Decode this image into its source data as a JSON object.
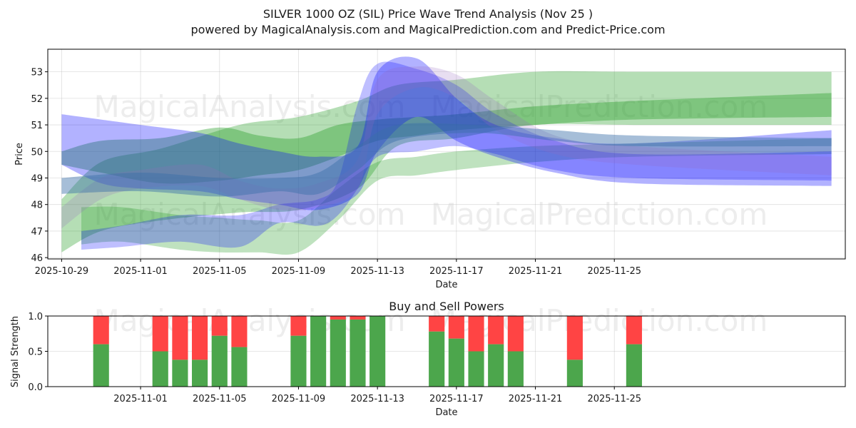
{
  "chart_data": [
    {
      "type": "area",
      "title": "SILVER 1000 OZ (SIL) Price Wave Trend Analysis (Nov 25 )",
      "subtitle": "powered by MagicalAnalysis.com and MagicalPrediction.com and Predict-Price.com",
      "xlabel": "Date",
      "ylabel": "Price",
      "xlim_days": [
        -0.7,
        39.7
      ],
      "ylim": [
        45.95,
        53.85
      ],
      "x_ticks": [
        {
          "day": 0,
          "label": "2025-10-29"
        },
        {
          "day": 4,
          "label": "2025-11-01"
        },
        {
          "day": 8,
          "label": "2025-11-05"
        },
        {
          "day": 12,
          "label": "2025-11-09"
        },
        {
          "day": 16,
          "label": "2025-11-13"
        },
        {
          "day": 20,
          "label": "2025-11-17"
        },
        {
          "day": 24,
          "label": "2025-11-21"
        },
        {
          "day": 28,
          "label": "2025-11-25"
        }
      ],
      "y_ticks": [
        46,
        47,
        48,
        49,
        50,
        51,
        52,
        53
      ],
      "grid": true,
      "watermarks": [
        "MagicalAnalysis.com",
        "MagicalPrediction.com",
        "MagicalAnalysis.com",
        "MagicalPrediction.com"
      ],
      "bands": [
        {
          "name": "green-wide-band",
          "color": "#2ca02c",
          "opacity": 0.35,
          "x": [
            0,
            2,
            5,
            9,
            12,
            15,
            17,
            20,
            24,
            29,
            39
          ],
          "lower": [
            46.2,
            47.0,
            47.4,
            47.7,
            47.8,
            48.6,
            50.2,
            50.5,
            51.0,
            51.0,
            51.0
          ],
          "upper": [
            48.2,
            49.6,
            50.1,
            51.0,
            51.3,
            51.9,
            52.5,
            52.7,
            53.0,
            53.0,
            53.0
          ]
        },
        {
          "name": "green-mid-band",
          "color": "#2ca02c",
          "opacity": 0.4,
          "x": [
            0,
            2,
            5,
            8,
            10,
            12,
            14,
            16,
            18,
            20,
            24,
            29,
            39
          ],
          "lower": [
            49.5,
            49.2,
            48.8,
            48.9,
            49.1,
            49.3,
            49.8,
            50.4,
            50.6,
            50.8,
            51.0,
            51.2,
            51.3
          ],
          "upper": [
            50.0,
            50.4,
            50.5,
            50.9,
            50.6,
            50.5,
            51.0,
            51.2,
            51.3,
            51.4,
            51.7,
            51.9,
            52.2
          ]
        },
        {
          "name": "green-low-band",
          "color": "#2ca02c",
          "opacity": 0.3,
          "x": [
            1,
            3,
            6,
            8,
            10,
            12,
            14,
            16,
            18,
            20,
            24,
            29,
            39
          ],
          "lower": [
            46.5,
            46.6,
            46.3,
            46.2,
            46.2,
            46.2,
            47.4,
            48.9,
            49.1,
            49.3,
            49.6,
            49.8,
            49.9
          ],
          "upper": [
            47.9,
            47.9,
            47.6,
            47.5,
            47.4,
            47.4,
            48.6,
            49.6,
            49.8,
            50.0,
            50.2,
            50.3,
            50.5
          ]
        },
        {
          "name": "blue-wide-band",
          "color": "#0000ff",
          "opacity": 0.3,
          "x": [
            0,
            2,
            4,
            7,
            9,
            11,
            13,
            15,
            16,
            18,
            20,
            22,
            25,
            29,
            39
          ],
          "lower": [
            49.5,
            48.8,
            48.6,
            48.5,
            48.2,
            48.0,
            47.8,
            48.4,
            50.0,
            51.3,
            50.4,
            49.8,
            49.2,
            48.8,
            48.7
          ],
          "upper": [
            51.4,
            51.2,
            51.0,
            50.7,
            50.3,
            50.0,
            49.8,
            50.2,
            53.0,
            53.5,
            52.0,
            51.0,
            50.5,
            50.3,
            50.8
          ]
        },
        {
          "name": "blue-mid-band",
          "color": "#0000ff",
          "opacity": 0.25,
          "x": [
            1,
            3,
            6,
            9,
            11,
            13,
            14,
            15,
            16,
            18,
            20,
            22,
            25,
            29,
            39
          ],
          "lower": [
            46.3,
            46.4,
            46.6,
            46.4,
            47.3,
            47.2,
            47.6,
            48.6,
            49.8,
            50.0,
            50.2,
            49.9,
            49.3,
            49.0,
            48.9
          ],
          "upper": [
            47.0,
            47.2,
            47.6,
            47.6,
            48.0,
            48.2,
            48.9,
            51.8,
            53.3,
            53.1,
            52.5,
            51.4,
            50.4,
            49.9,
            50.0
          ]
        },
        {
          "name": "violet-band",
          "color": "#9467bd",
          "opacity": 0.22,
          "x": [
            0,
            2,
            4,
            7,
            9,
            11,
            13,
            15,
            16,
            18,
            20,
            22,
            25,
            29,
            39
          ],
          "lower": [
            47.1,
            48.2,
            48.6,
            48.7,
            48.2,
            47.8,
            47.9,
            48.6,
            51.4,
            52.4,
            52.0,
            50.8,
            49.9,
            49.5,
            49.1
          ],
          "upper": [
            47.9,
            49.0,
            49.3,
            49.5,
            48.9,
            48.6,
            48.8,
            49.7,
            52.7,
            53.2,
            52.9,
            51.9,
            50.6,
            50.2,
            49.8
          ]
        },
        {
          "name": "teal-band",
          "color": "#3a6fa8",
          "opacity": 0.45,
          "x": [
            0,
            4,
            8,
            11,
            13,
            15,
            17,
            21,
            25,
            29,
            39
          ],
          "lower": [
            48.4,
            48.5,
            48.3,
            48.5,
            48.4,
            49.3,
            50.4,
            50.7,
            50.4,
            50.2,
            50.2
          ],
          "upper": [
            49.0,
            49.2,
            49.0,
            49.0,
            49.2,
            50.2,
            51.0,
            51.0,
            50.8,
            50.6,
            50.5
          ]
        }
      ]
    },
    {
      "type": "bar",
      "title": "Buy and Sell Powers",
      "xlabel": "",
      "ylabel": "Signal Strength",
      "xlabel_bottom": "Date",
      "ylim": [
        0,
        1.0
      ],
      "y_ticks": [
        0.0,
        0.5,
        1.0
      ],
      "xlim_days": [
        -0.7,
        39.7
      ],
      "x_ticks": [
        {
          "day": 4,
          "label": "2025-11-01"
        },
        {
          "day": 8,
          "label": "2025-11-05"
        },
        {
          "day": 12,
          "label": "2025-11-09"
        },
        {
          "day": 16,
          "label": "2025-11-13"
        },
        {
          "day": 20,
          "label": "2025-11-17"
        },
        {
          "day": 24,
          "label": "2025-11-21"
        },
        {
          "day": 28,
          "label": "2025-11-25"
        }
      ],
      "series": [
        {
          "name": "Buy",
          "color": "#4ca64c"
        },
        {
          "name": "Sell",
          "color": "#ff4444"
        }
      ],
      "bars": [
        {
          "day": 2,
          "buy": 0.6
        },
        {
          "day": 5,
          "buy": 0.5
        },
        {
          "day": 6,
          "buy": 0.38
        },
        {
          "day": 7,
          "buy": 0.38
        },
        {
          "day": 8,
          "buy": 0.72
        },
        {
          "day": 9,
          "buy": 0.56
        },
        {
          "day": 12,
          "buy": 0.72
        },
        {
          "day": 13,
          "buy": 1.0
        },
        {
          "day": 14,
          "buy": 0.95
        },
        {
          "day": 15,
          "buy": 0.95
        },
        {
          "day": 16,
          "buy": 1.0
        },
        {
          "day": 19,
          "buy": 0.78
        },
        {
          "day": 20,
          "buy": 0.68
        },
        {
          "day": 21,
          "buy": 0.5
        },
        {
          "day": 22,
          "buy": 0.6
        },
        {
          "day": 23,
          "buy": 0.5
        },
        {
          "day": 26,
          "buy": 0.38
        },
        {
          "day": 29,
          "buy": 0.6
        }
      ],
      "watermarks": [
        "MagicalAnalysis.com",
        "MagicalPrediction.com"
      ]
    }
  ]
}
